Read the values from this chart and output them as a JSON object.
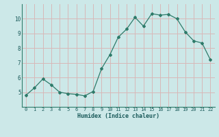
{
  "x": [
    0,
    1,
    2,
    3,
    4,
    5,
    6,
    7,
    8,
    9,
    10,
    11,
    12,
    13,
    14,
    15,
    16,
    17,
    18,
    19,
    20,
    21,
    22
  ],
  "y": [
    4.8,
    5.3,
    5.9,
    5.5,
    5.0,
    4.9,
    4.85,
    4.75,
    5.05,
    6.6,
    7.55,
    8.75,
    9.3,
    10.1,
    9.5,
    10.35,
    10.25,
    10.3,
    10.0,
    9.1,
    8.5,
    8.35,
    7.2
  ],
  "xlabel": "Humidex (Indice chaleur)",
  "bg_color": "#cce8e8",
  "grid_color_h": "#d8b8b8",
  "grid_color_v": "#d8b8b8",
  "line_color": "#2e7b6a",
  "ylim": [
    4.0,
    11.0
  ],
  "xlim": [
    -0.5,
    22.5
  ],
  "yticks": [
    5,
    6,
    7,
    8,
    9,
    10
  ],
  "xticks": [
    0,
    1,
    2,
    3,
    4,
    5,
    6,
    7,
    8,
    9,
    10,
    11,
    12,
    13,
    14,
    15,
    16,
    17,
    18,
    19,
    20,
    21,
    22
  ]
}
